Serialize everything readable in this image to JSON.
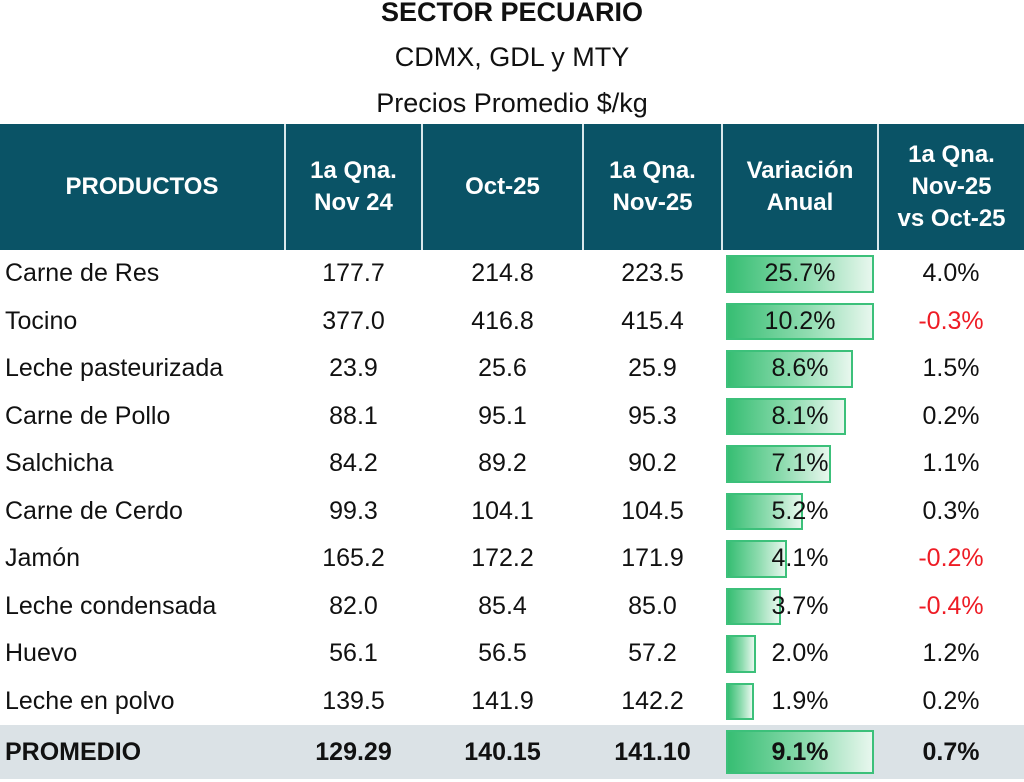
{
  "title": "SECTOR PECUARIO",
  "subtitle": "CDMX, GDL y MTY",
  "subtitle2": "Precios Promedio $/kg",
  "chart_data": {
    "type": "table",
    "title": "SECTOR PECUARIO",
    "columns": [
      "PRODUCTOS",
      "1a Qna.\nNov 24",
      "Oct-25",
      "1a Qna.\nNov-25",
      "Variación\nAnual",
      "1a Qna.\nNov-25\nvs Oct-25"
    ],
    "rows": [
      {
        "name": "Carne de Res",
        "nov24": "177.7",
        "oct25": "214.8",
        "nov25": "223.5",
        "var": "25.7%",
        "bar_fill": 1.0,
        "vs": "4.0%",
        "neg": false
      },
      {
        "name": "Tocino",
        "nov24": "377.0",
        "oct25": "416.8",
        "nov25": "415.4",
        "var": "10.2%",
        "bar_fill": 1.0,
        "vs": "-0.3%",
        "neg": true
      },
      {
        "name": "Leche pasteurizada",
        "nov24": "23.9",
        "oct25": "25.6",
        "nov25": "25.9",
        "var": "8.6%",
        "bar_fill": 0.86,
        "vs": "1.5%",
        "neg": false
      },
      {
        "name": "Carne de Pollo",
        "nov24": "88.1",
        "oct25": "95.1",
        "nov25": "95.3",
        "var": "8.1%",
        "bar_fill": 0.81,
        "vs": "0.2%",
        "neg": false
      },
      {
        "name": "Salchicha",
        "nov24": "84.2",
        "oct25": "89.2",
        "nov25": "90.2",
        "var": "7.1%",
        "bar_fill": 0.71,
        "vs": "1.1%",
        "neg": false
      },
      {
        "name": "Carne de Cerdo",
        "nov24": "99.3",
        "oct25": "104.1",
        "nov25": "104.5",
        "var": "5.2%",
        "bar_fill": 0.52,
        "vs": "0.3%",
        "neg": false
      },
      {
        "name": "Jamón",
        "nov24": "165.2",
        "oct25": "172.2",
        "nov25": "171.9",
        "var": "4.1%",
        "bar_fill": 0.41,
        "vs": "-0.2%",
        "neg": true
      },
      {
        "name": "Leche condensada",
        "nov24": "82.0",
        "oct25": "85.4",
        "nov25": "85.0",
        "var": "3.7%",
        "bar_fill": 0.37,
        "vs": "-0.4%",
        "neg": true
      },
      {
        "name": "Huevo",
        "nov24": "56.1",
        "oct25": "56.5",
        "nov25": "57.2",
        "var": "2.0%",
        "bar_fill": 0.2,
        "vs": "1.2%",
        "neg": false
      },
      {
        "name": "Leche en polvo",
        "nov24": "139.5",
        "oct25": "141.9",
        "nov25": "142.2",
        "var": "1.9%",
        "bar_fill": 0.19,
        "vs": "0.2%",
        "neg": false
      }
    ],
    "average": {
      "name": "PROMEDIO",
      "nov24": "129.29",
      "oct25": "140.15",
      "nov25": "141.10",
      "var": "9.1%",
      "bar_fill": 1.0,
      "vs": "0.7%"
    }
  }
}
